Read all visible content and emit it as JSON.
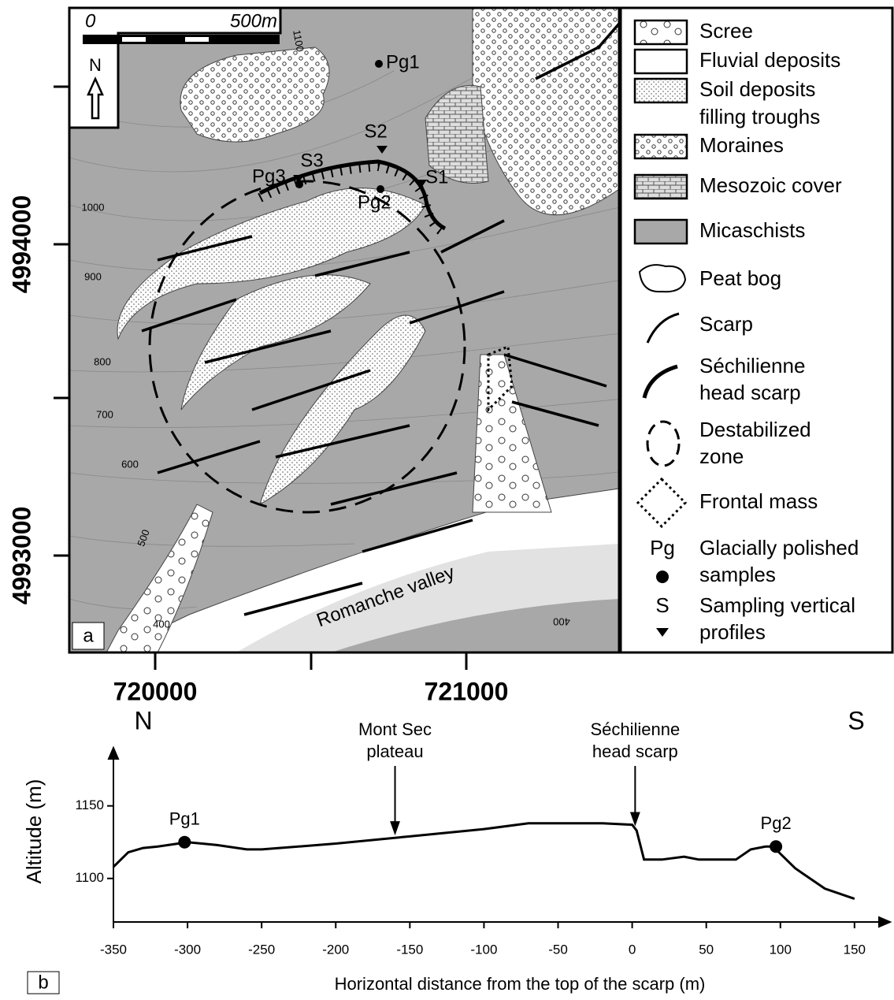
{
  "map": {
    "panel_label": "a",
    "scale": {
      "start": "0",
      "end": "500m"
    },
    "north": "N",
    "y_coords": [
      "4994000",
      "4993000"
    ],
    "x_coords": [
      "720000",
      "721000"
    ],
    "places": [
      "Pg1",
      "Pg2",
      "Pg3",
      "S1",
      "S2",
      "S3",
      "Romanche valley"
    ],
    "contours": [
      "1100",
      "1000",
      "900",
      "800",
      "700",
      "600",
      "500",
      "400",
      "400"
    ],
    "legend": [
      {
        "lines": [
          "Scree"
        ]
      },
      {
        "lines": [
          "Fluvial deposits"
        ]
      },
      {
        "lines": [
          "Soil deposits",
          "filling troughs"
        ]
      },
      {
        "lines": [
          "Moraines"
        ]
      },
      {
        "lines": [
          "Mesozoic cover"
        ]
      },
      {
        "lines": [
          "Micaschists"
        ]
      },
      {
        "lines": [
          "Peat bog"
        ]
      },
      {
        "lines": [
          "Scarp"
        ]
      },
      {
        "lines": [
          "Séchilienne",
          "head scarp"
        ]
      },
      {
        "lines": [
          "Destabilized",
          "zone"
        ]
      },
      {
        "lines": [
          "Frontal mass"
        ]
      },
      {
        "symbol": "Pg",
        "lines": [
          "Glacially polished",
          "samples"
        ]
      },
      {
        "symbol": "S",
        "lines": [
          "Sampling vertical",
          "profiles"
        ]
      }
    ]
  },
  "chart_data": {
    "type": "line",
    "panel_label": "b",
    "left_label": "N",
    "right_label": "S",
    "x_label": "Horizontal distance from the top of the scarp (m)",
    "y_label": "Altitude (m)",
    "x": [
      -350,
      -340,
      -330,
      -320,
      -300,
      -280,
      -260,
      -250,
      -200,
      -150,
      -100,
      -70,
      -50,
      -20,
      0,
      3,
      8,
      20,
      35,
      45,
      60,
      70,
      80,
      90,
      95,
      110,
      130,
      150
    ],
    "series": [
      {
        "color": "#000000",
        "values": [
          1108,
          1118,
          1121,
          1122,
          1125,
          1123,
          1120,
          1120,
          1124,
          1129,
          1134,
          1138,
          1138,
          1138,
          1137,
          1133,
          1113,
          1113,
          1115,
          1113,
          1113,
          1113,
          1120,
          1122,
          1122,
          1107,
          1093,
          1086
        ]
      }
    ],
    "points": [
      {
        "label": "Pg1",
        "x": -302,
        "y": 1125
      },
      {
        "label": "Pg2",
        "x": 97,
        "y": 1122
      }
    ],
    "annotations": [
      {
        "lines": [
          "Mont Sec",
          "plateau"
        ],
        "x": -160
      },
      {
        "lines": [
          "Séchilienne",
          "head scarp"
        ],
        "x": 2
      }
    ],
    "xlim": [
      -350,
      174
    ],
    "ylim": [
      1070,
      1190
    ],
    "xticks": [
      -350,
      -300,
      -250,
      -200,
      -150,
      -100,
      -50,
      0,
      50,
      100,
      150
    ],
    "yticks": [
      1100,
      1150
    ]
  }
}
